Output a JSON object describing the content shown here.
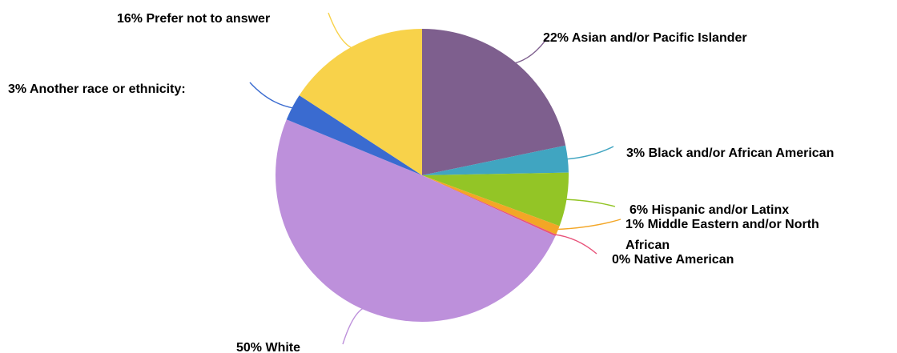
{
  "chart_data": {
    "type": "pie",
    "title": "",
    "slices": [
      {
        "label": "22% Asian and/or Pacific Islander",
        "value": 22,
        "color": "#7e5f8e"
      },
      {
        "label": "3% Black and/or African American",
        "value": 3,
        "color": "#40a5c1"
      },
      {
        "label": "6% Hispanic and/or Latinx",
        "value": 6,
        "color": "#93c526"
      },
      {
        "label_lines": [
          "1% Middle Eastern and/or North",
          "African"
        ],
        "value": 1,
        "color": "#f3a626"
      },
      {
        "label": "0% Native American",
        "value": 0.2,
        "color": "#e8537a"
      },
      {
        "label": "50% White",
        "value": 50,
        "color": "#bd90db"
      },
      {
        "label": "3% Another race or ethnicity:",
        "value": 3,
        "color": "#3a6bd0"
      },
      {
        "label": "16% Prefer not to answer",
        "value": 16,
        "color": "#f8d24a"
      }
    ]
  }
}
